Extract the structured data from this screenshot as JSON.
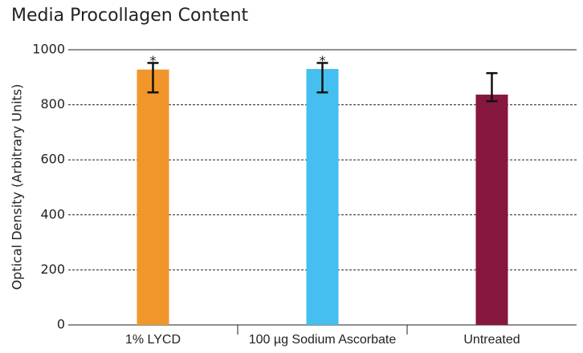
{
  "chart_data": {
    "type": "bar",
    "title": "Media Procollagen Content",
    "y_label": "Optical Density (Arbitrary Units)",
    "categories": [
      "1% LYCD",
      "100 µg Sodium Ascorbate",
      "Untreated"
    ],
    "values": [
      928,
      930,
      837
    ],
    "error_low": [
      845,
      845,
      813
    ],
    "error_high": [
      952,
      952,
      915
    ],
    "colors": [
      "#f0962a",
      "#44bfef",
      "#86173e"
    ],
    "annotations": [
      "*",
      "*",
      null
    ],
    "ylim": [
      0,
      1000
    ],
    "yticks": [
      0,
      200,
      400,
      600,
      800,
      1000
    ],
    "grid": true
  }
}
